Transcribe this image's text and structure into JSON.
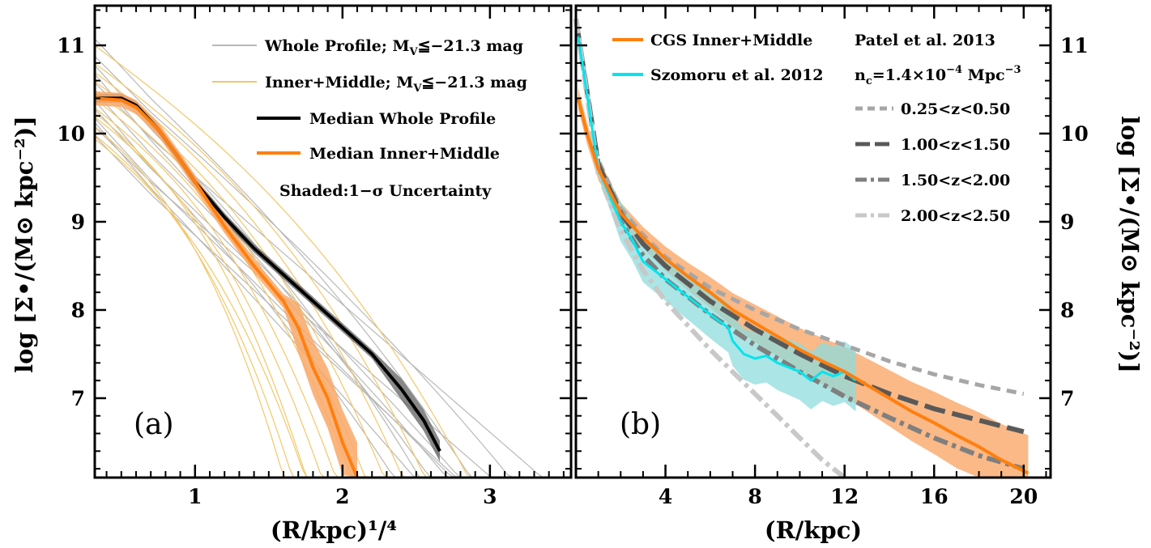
{
  "figure": {
    "ylabel_left": "log [Σ•/(M⊙ kpc⁻²)]",
    "ylabel_right": "log [Σ•/(M⊙ kpc⁻²)]",
    "yticks": [
      "7",
      "8",
      "9",
      "10",
      "11"
    ]
  },
  "chart_data": [
    {
      "type": "line",
      "panel_label": "(a)",
      "xlabel": "(R/kpc)¹/⁴",
      "ylabel": "log [Σ•/(M⊙ kpc⁻²)]",
      "xlim": [
        0.32,
        3.55
      ],
      "ylim": [
        6.1,
        11.45
      ],
      "xticks": [
        "1",
        "2",
        "3"
      ],
      "colors": {
        "whole": "#b8b8b8",
        "inner": "#f3c76a",
        "median_whole": "#000000",
        "median_inner": "#ff7f0e",
        "band_whole": "#555555",
        "band_inner": "#f9a869"
      },
      "legend": [
        {
          "label": "Whole Profile; M",
          "sub": "V",
          "suffix": "≦−21.3 mag",
          "color": "#b8b8b8"
        },
        {
          "label": "Inner+Middle; M",
          "sub": "V",
          "suffix": "≦−21.3 mag",
          "color": "#f3c76a"
        },
        {
          "label": "Median Whole Profile",
          "color": "#000000"
        },
        {
          "label": "Median Inner+Middle",
          "color": "#ff7f0e"
        },
        {
          "label": "Shaded:1−σ Uncertainty",
          "color": null
        }
      ],
      "series": [
        {
          "name": "Median Whole Profile",
          "x": [
            0.32,
            0.5,
            0.6,
            0.75,
            0.9,
            1.0,
            1.2,
            1.4,
            1.6,
            1.8,
            2.0,
            2.2,
            2.4,
            2.55,
            2.66
          ],
          "y": [
            10.4,
            10.4,
            10.32,
            10.05,
            9.7,
            9.45,
            9.05,
            8.7,
            8.4,
            8.1,
            7.8,
            7.5,
            7.1,
            6.75,
            6.4
          ]
        },
        {
          "name": "Median Inner+Middle",
          "x": [
            0.32,
            0.5,
            0.6,
            0.75,
            0.9,
            1.0,
            1.2,
            1.4,
            1.5,
            1.6,
            1.7,
            1.8,
            1.9,
            2.0,
            2.1
          ],
          "y": [
            10.4,
            10.38,
            10.3,
            10.05,
            9.7,
            9.45,
            8.95,
            8.5,
            8.3,
            8.1,
            7.8,
            7.35,
            7.0,
            6.5,
            6.1
          ]
        }
      ]
    },
    {
      "type": "line",
      "panel_label": "(b)",
      "xlabel": "(R/kpc)",
      "ylabel": "log [Σ•/(M⊙ kpc⁻²)]",
      "xlim": [
        0,
        21.2
      ],
      "ylim": [
        6.1,
        11.45
      ],
      "xticks": [
        "4",
        "8",
        "12",
        "16",
        "20"
      ],
      "legend": [
        {
          "label": "CGS Inner+Middle",
          "color": "#ff7f0e"
        },
        {
          "label": "Szomoru et al. 2012",
          "color": "#00e5ee"
        }
      ],
      "annotations": {
        "patel_title": "Patel et al. 2013",
        "nc_prefix": "n",
        "nc_sub": "c",
        "nc_mid": "=1.4×10",
        "nc_exp": "−4",
        "nc_unit": " Mpc",
        "nc_unit_exp": "−3"
      },
      "patel_legend": [
        {
          "label": "0.25<z<0.50",
          "color": "#a6a6a6",
          "style": "dash"
        },
        {
          "label": "1.00<z<1.50",
          "color": "#595959",
          "style": "longdash"
        },
        {
          "label": "1.50<z<2.00",
          "color": "#7f7f7f",
          "style": "dashdot"
        },
        {
          "label": "2.00<z<2.50",
          "color": "#c8c8c8",
          "style": "dashdot"
        }
      ],
      "series": [
        {
          "name": "CGS Inner+Middle",
          "x": [
            0.1,
            0.5,
            1,
            2,
            3,
            4,
            5,
            6,
            7,
            8,
            9,
            10,
            11,
            12,
            13,
            14,
            15,
            16,
            17,
            18,
            19,
            20.2
          ],
          "y": [
            10.4,
            10.0,
            9.6,
            9.1,
            8.82,
            8.58,
            8.38,
            8.2,
            8.0,
            7.85,
            7.7,
            7.55,
            7.42,
            7.3,
            7.15,
            7.0,
            6.85,
            6.72,
            6.58,
            6.45,
            6.3,
            6.15
          ]
        },
        {
          "name": "Szomoru et al. 2012",
          "x": [
            0.1,
            1,
            2,
            2.5,
            3,
            4,
            5,
            6,
            6.8,
            7,
            7.5,
            8,
            8.5,
            9,
            9.5,
            10,
            10.5,
            11,
            11.5,
            12,
            12.5
          ],
          "y": [
            11.1,
            9.6,
            9.0,
            8.8,
            8.55,
            8.35,
            8.15,
            7.95,
            7.8,
            7.65,
            7.5,
            7.45,
            7.48,
            7.4,
            7.35,
            7.3,
            7.2,
            7.3,
            7.25,
            7.3,
            7.2
          ]
        },
        {
          "name": "0.25<z<0.50",
          "x": [
            0,
            1,
            2,
            3,
            4,
            6,
            8,
            10,
            12,
            14,
            16,
            18,
            20
          ],
          "y": [
            11.3,
            9.7,
            9.15,
            8.85,
            8.6,
            8.25,
            8.0,
            7.78,
            7.6,
            7.42,
            7.27,
            7.15,
            7.05
          ]
        },
        {
          "name": "1.00<z<1.50",
          "x": [
            0,
            1,
            2,
            3,
            4,
            6,
            8,
            10,
            12,
            14,
            16,
            18,
            20
          ],
          "y": [
            11.3,
            9.65,
            9.1,
            8.75,
            8.5,
            8.1,
            7.78,
            7.5,
            7.25,
            7.05,
            6.88,
            6.75,
            6.62
          ]
        },
        {
          "name": "1.50<z<2.00",
          "x": [
            0,
            1,
            2,
            3,
            4,
            6,
            8,
            10,
            12,
            14,
            16,
            18,
            20
          ],
          "y": [
            11.3,
            9.6,
            9.0,
            8.62,
            8.35,
            7.95,
            7.6,
            7.3,
            7.02,
            6.78,
            6.55,
            6.35,
            6.2
          ]
        },
        {
          "name": "2.00<z<2.50",
          "x": [
            0,
            1,
            2,
            3,
            4,
            6,
            8,
            9,
            10,
            11,
            12
          ],
          "y": [
            11.3,
            9.55,
            8.9,
            8.45,
            8.1,
            7.55,
            7.05,
            6.8,
            6.55,
            6.3,
            6.1
          ]
        }
      ]
    }
  ]
}
